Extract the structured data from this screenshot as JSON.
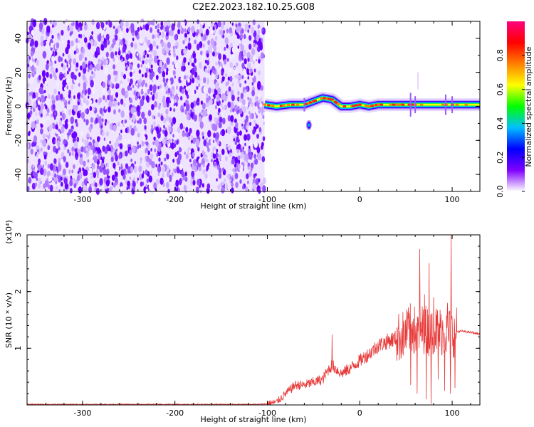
{
  "title": "C2E2.2023.182.10.25.G08",
  "chart_data": [
    {
      "type": "heatmap",
      "xlabel": "Height of straight line (km)",
      "ylabel": "Frequency (Hz)",
      "xlim": [
        -360,
        130
      ],
      "ylim": [
        -50,
        50
      ],
      "xticks": [
        -300,
        -200,
        -100,
        0,
        100
      ],
      "yticks": [
        -40,
        -20,
        0,
        20,
        40
      ],
      "colorbar": {
        "label": "Normalized spectral amplitude",
        "range": [
          0.0,
          1.0
        ],
        "ticks": [
          "0.0",
          "0.2",
          "0.4",
          "0.6",
          "0.8"
        ],
        "colormap": [
          "#ffffff",
          "#8000ff",
          "#0000ff",
          "#00bfff",
          "#00ff00",
          "#ffff00",
          "#ff8000",
          "#ff0000",
          "#ff0080"
        ]
      },
      "noise_region": {
        "x_range": [
          -360,
          -103
        ],
        "typical_amplitude": 0.15
      },
      "signal_band": [
        {
          "x": -103,
          "y": 1
        },
        {
          "x": -90,
          "y": 0
        },
        {
          "x": -75,
          "y": 1
        },
        {
          "x": -60,
          "y": 1
        },
        {
          "x": -50,
          "y": 3
        },
        {
          "x": -40,
          "y": 5
        },
        {
          "x": -30,
          "y": 4
        },
        {
          "x": -20,
          "y": 0
        },
        {
          "x": -10,
          "y": 0
        },
        {
          "x": 0,
          "y": 1
        },
        {
          "x": 10,
          "y": 0
        },
        {
          "x": 20,
          "y": 1
        },
        {
          "x": 40,
          "y": 1
        },
        {
          "x": 60,
          "y": 1
        },
        {
          "x": 80,
          "y": 1
        },
        {
          "x": 100,
          "y": 1
        },
        {
          "x": 130,
          "y": 1
        }
      ],
      "blobs": [
        {
          "x": -55,
          "y": -11
        }
      ]
    },
    {
      "type": "line",
      "xlabel": "Height of straight line (km)",
      "ylabel": "SNR (10 * v/v)",
      "y_multiplier": "(x10⁴)",
      "xlim": [
        -360,
        130
      ],
      "ylim": [
        0,
        3
      ],
      "xticks": [
        -300,
        -200,
        -100,
        0,
        100
      ],
      "yticks": [
        1,
        2,
        3
      ],
      "color": "#e83a3a",
      "series": [
        {
          "x": [
            -360,
            -200,
            -110,
            -100,
            -90,
            -80,
            -70,
            -60,
            -50,
            -40,
            -35,
            -30,
            -20,
            -10,
            0,
            10,
            20,
            30,
            40,
            50,
            55,
            60,
            65,
            70,
            75,
            80,
            85,
            90,
            95,
            100,
            110,
            120,
            130
          ],
          "values": [
            0.01,
            0.01,
            0.01,
            0.02,
            0.05,
            0.2,
            0.35,
            0.35,
            0.4,
            0.45,
            0.6,
            0.7,
            0.55,
            0.65,
            0.78,
            0.9,
            1.05,
            1.12,
            1.18,
            1.25,
            1.35,
            1.3,
            1.3,
            1.35,
            1.3,
            1.35,
            1.3,
            1.3,
            1.28,
            1.28,
            1.3,
            1.28,
            1.25
          ]
        }
      ],
      "spikes": [
        {
          "x": -30,
          "y": 1.24
        },
        {
          "x": 10,
          "y": 0.9
        },
        {
          "x": 52,
          "y": 1.65
        },
        {
          "x": 58,
          "y": 1.52
        },
        {
          "x": 65,
          "y": 2.75
        },
        {
          "x": 70,
          "y": 1.95
        },
        {
          "x": 75,
          "y": 2.5
        },
        {
          "x": 80,
          "y": 1.9
        },
        {
          "x": 88,
          "y": 1.6
        },
        {
          "x": 95,
          "y": 1.8
        },
        {
          "x": 99,
          "y": 3.05
        }
      ],
      "dips": [
        {
          "x": 55,
          "y": 0.35
        },
        {
          "x": 62,
          "y": 0.2
        },
        {
          "x": 72,
          "y": 0.1
        },
        {
          "x": 77,
          "y": 0.02
        },
        {
          "x": 85,
          "y": 0.45
        },
        {
          "x": 92,
          "y": 0.25
        },
        {
          "x": 98,
          "y": 0.2
        },
        {
          "x": 103,
          "y": 0.3
        }
      ]
    }
  ]
}
